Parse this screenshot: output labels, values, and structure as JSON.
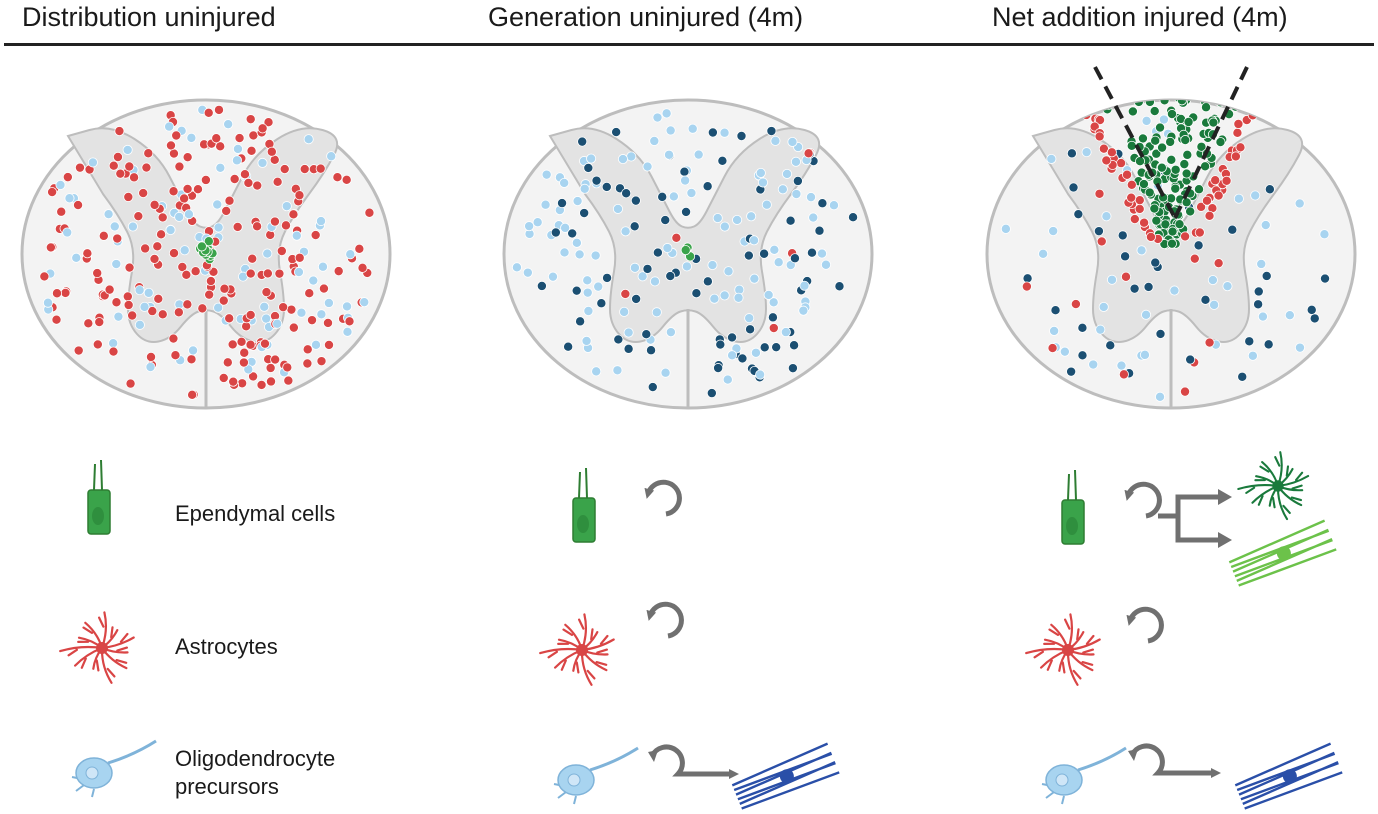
{
  "titles": {
    "col1": "Distribution uninjured",
    "col2": "Generation uninjured (4m)",
    "col3": "Net addition injured (4m)"
  },
  "legend": {
    "ependymal": "Ependymal cells",
    "astrocytes": "Astrocytes",
    "opc_line1": "Oligodendrocyte",
    "opc_line2": "precursors"
  },
  "colors": {
    "ependymal": "#3aa34a",
    "astrocyte": "#d94545",
    "opc": "#a8d4f0",
    "oligodendrocyte": "#1b4f72",
    "scar_ependymal": "#1a7a3c",
    "arrow": "#707070",
    "cord_fill": "#f3f3f3",
    "grey_matter": "#e3e3e3",
    "outline": "#bdbdbd"
  }
}
